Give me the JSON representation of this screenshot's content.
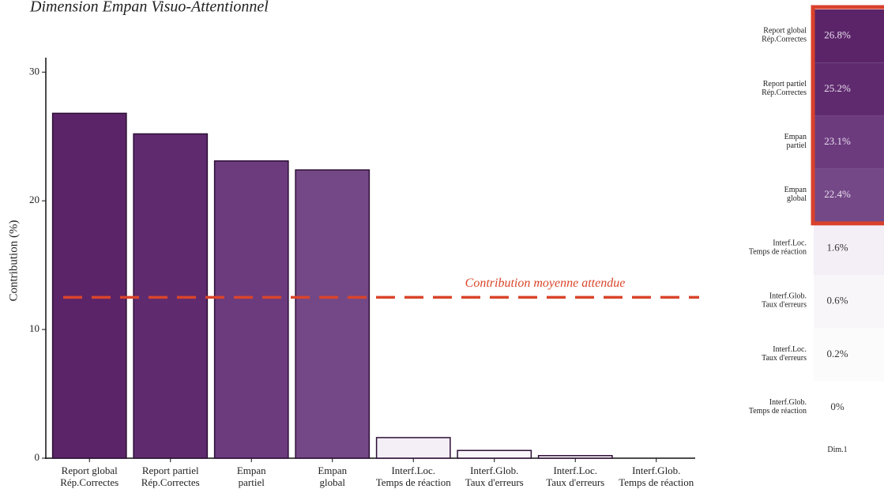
{
  "chart_data": [
    {
      "type": "bar",
      "title": "Dimension Empan Visuo-Attentionnel",
      "ylabel": "Contribution (%)",
      "categories": [
        [
          "Report global",
          "Rép.Correctes"
        ],
        [
          "Report partiel",
          "Rép.Correctes"
        ],
        [
          "Empan",
          "partiel"
        ],
        [
          "Empan",
          "global"
        ],
        [
          "Interf.Loc.",
          "Temps de réaction"
        ],
        [
          "Interf.Glob.",
          "Taux d'erreurs"
        ],
        [
          "Interf.Loc.",
          "Taux d'erreurs"
        ],
        [
          "Interf.Glob.",
          "Temps de réaction"
        ]
      ],
      "values": [
        26.8,
        25.2,
        23.1,
        22.4,
        1.6,
        0.6,
        0.2,
        0
      ],
      "colors": [
        "#5b2468",
        "#5f2b6e",
        "#6c3b7e",
        "#744886",
        "#f4eef6",
        "#f9f6fa",
        "#fcfbfc",
        "#ffffff"
      ],
      "ylim": [
        0,
        31
      ],
      "yticks": [
        0,
        10,
        20,
        30
      ],
      "reference": {
        "value": 12.5,
        "label": "Contribution moyenne attendue",
        "color": "#d9452b"
      }
    },
    {
      "type": "heatmap",
      "categories": [
        [
          "Report global",
          "Rép.Correctes"
        ],
        [
          "Report partiel",
          "Rép.Correctes"
        ],
        [
          "Empan",
          "partiel"
        ],
        [
          "Empan",
          "global"
        ],
        [
          "Interf.Loc.",
          "Temps de réaction"
        ],
        [
          "Interf.Glob.",
          "Taux d'erreurs"
        ],
        [
          "Interf.Loc.",
          "Taux d'erreurs"
        ],
        [
          "Interf.Glob.",
          "Temps de réaction"
        ]
      ],
      "column": "Dim.1",
      "values": [
        26.8,
        25.2,
        23.1,
        22.4,
        1.6,
        0.6,
        0.2,
        0
      ],
      "value_labels": [
        "26.8%",
        "25.2%",
        "23.1%",
        "22.4%",
        "1.6%",
        "0.6%",
        "0.2%",
        "0%"
      ],
      "colors": [
        "#5b2468",
        "#5f2b6e",
        "#6c3b7e",
        "#744886",
        "#f4eef6",
        "#f9f6fa",
        "#fcfbfc",
        "#ffffff"
      ]
    }
  ]
}
